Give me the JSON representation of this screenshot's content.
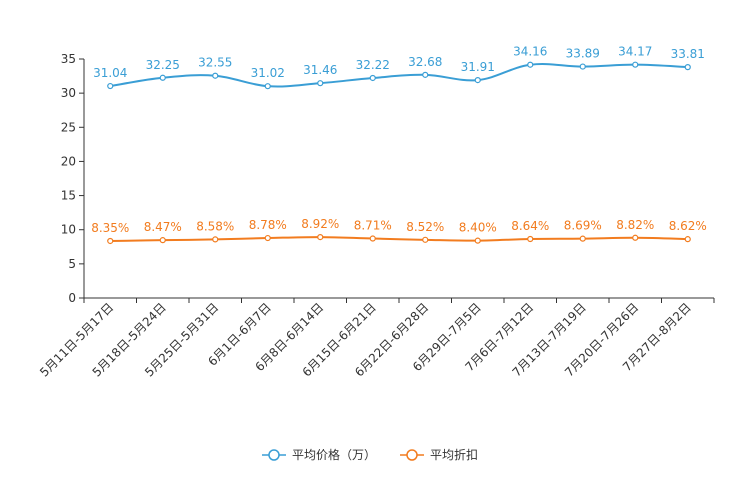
{
  "chart_data": {
    "type": "line",
    "categories": [
      "5月11日-5月17日",
      "5月18日-5月24日",
      "5月25日-5月31日",
      "6月1日-6月7日",
      "6月8日-6月14日",
      "6月15日-6月21日",
      "6月22日-6月28日",
      "6月29日-7月5日",
      "7月6日-7月12日",
      "7月13日-7月19日",
      "7月20日-7月26日",
      "7月27日-8月2日"
    ],
    "series": [
      {
        "name": "平均价格（万）",
        "color": "#3a9ed5",
        "values": [
          31.04,
          32.25,
          32.55,
          31.02,
          31.46,
          32.22,
          32.68,
          31.91,
          34.16,
          33.89,
          34.17,
          33.81
        ],
        "labels": [
          "31.04",
          "32.25",
          "32.55",
          "31.02",
          "31.46",
          "32.22",
          "32.68",
          "31.91",
          "34.16",
          "33.89",
          "34.17",
          "33.81"
        ]
      },
      {
        "name": "平均折扣",
        "color": "#f27c1f",
        "values": [
          8.35,
          8.47,
          8.58,
          8.78,
          8.92,
          8.71,
          8.52,
          8.4,
          8.64,
          8.69,
          8.82,
          8.62
        ],
        "labels": [
          "8.35%",
          "8.47%",
          "8.58%",
          "8.78%",
          "8.92%",
          "8.71%",
          "8.52%",
          "8.40%",
          "8.64%",
          "8.69%",
          "8.82%",
          "8.62%"
        ]
      }
    ],
    "ylim": [
      0,
      35
    ],
    "yticks": [
      0,
      5,
      10,
      15,
      20,
      25,
      30,
      35
    ],
    "title": "",
    "xlabel": "",
    "ylabel": "",
    "legend": "bottom-center",
    "grid": false
  }
}
